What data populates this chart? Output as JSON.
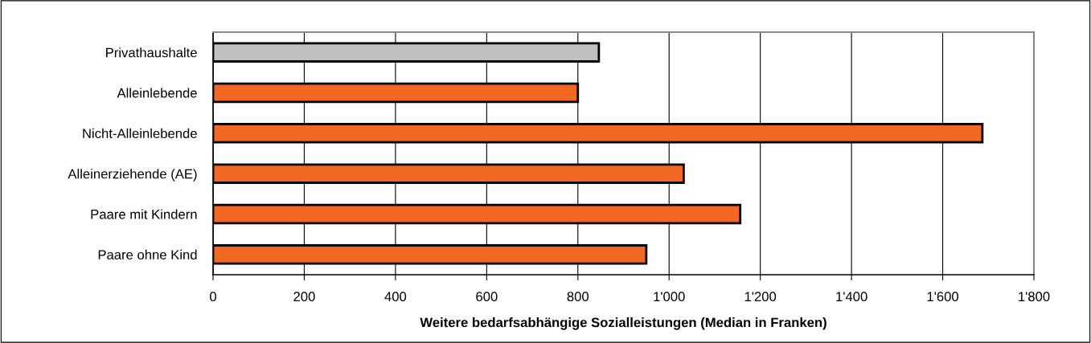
{
  "chart_data": {
    "type": "bar",
    "orientation": "horizontal",
    "xlabel": "Weitere bedarfsabhängige Sozialleistungen (Median in Franken)",
    "categories": [
      "Privathaushalte",
      "Alleinlebende",
      "Nicht-Alleinlebende",
      "Alleinerziehende (AE)",
      "Paare mit Kindern",
      "Paare ohne Kind"
    ],
    "values": [
      846,
      800,
      1687,
      1032,
      1156,
      950
    ],
    "colors": [
      "#c0c0c0",
      "#f26722",
      "#f26722",
      "#f26722",
      "#f26722",
      "#f26722"
    ],
    "xlim": [
      0,
      1800
    ],
    "xticks": [
      0,
      200,
      400,
      600,
      800,
      {
        "value": 1000,
        "label": "1'000"
      },
      {
        "value": 1200,
        "label": "1'200"
      },
      {
        "value": 1400,
        "label": "1'400"
      },
      {
        "value": 1600,
        "label": "1'600"
      },
      {
        "value": 1800,
        "label": "1'800"
      }
    ],
    "grid": "x",
    "legend": false
  }
}
